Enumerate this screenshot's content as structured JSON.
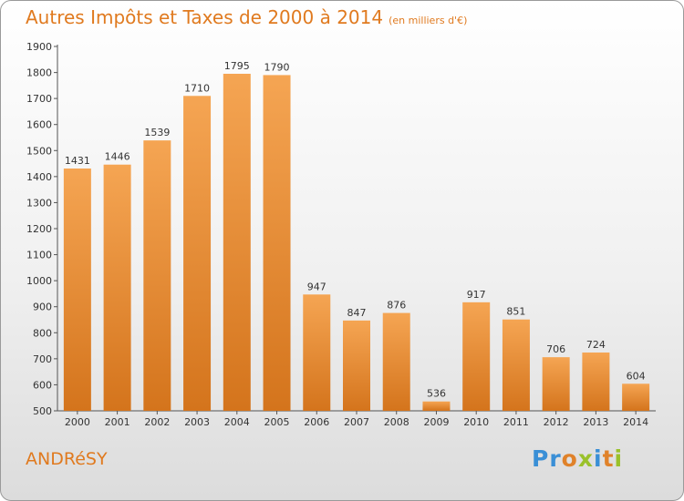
{
  "title": "Autres Impôts et Taxes de 2000 à 2014",
  "unit": "(en milliers d'€)",
  "city": "ANDRéSY",
  "logo": {
    "letters": [
      {
        "ch": "P",
        "color": "#3a8fd6"
      },
      {
        "ch": "r",
        "color": "#3a8fd6"
      },
      {
        "ch": "o",
        "color": "#e0822a"
      },
      {
        "ch": "x",
        "color": "#9ac12a"
      },
      {
        "ch": "i",
        "color": "#3a8fd6"
      },
      {
        "ch": "t",
        "color": "#e0822a"
      },
      {
        "ch": "i",
        "color": "#9ac12a"
      }
    ]
  },
  "colors": {
    "bar_top": "#f5a553",
    "bar_bottom": "#d4741c",
    "accent": "#e07a1f"
  },
  "chart_data": {
    "type": "bar",
    "title": "Autres Impôts et Taxes de 2000 à 2014",
    "subtitle": "(en milliers d'€)",
    "categories": [
      "2000",
      "2001",
      "2002",
      "2003",
      "2004",
      "2005",
      "2006",
      "2007",
      "2008",
      "2009",
      "2010",
      "2011",
      "2012",
      "2013",
      "2014"
    ],
    "values": [
      1431,
      1446,
      1539,
      1710,
      1795,
      1790,
      947,
      847,
      876,
      536,
      917,
      851,
      706,
      724,
      604
    ],
    "yticks": [
      500,
      600,
      700,
      800,
      900,
      1000,
      1100,
      1200,
      1300,
      1400,
      1500,
      1600,
      1700,
      1800,
      1900
    ],
    "ylim": [
      500,
      1900
    ],
    "grid": false,
    "xlabel": "",
    "ylabel": ""
  }
}
